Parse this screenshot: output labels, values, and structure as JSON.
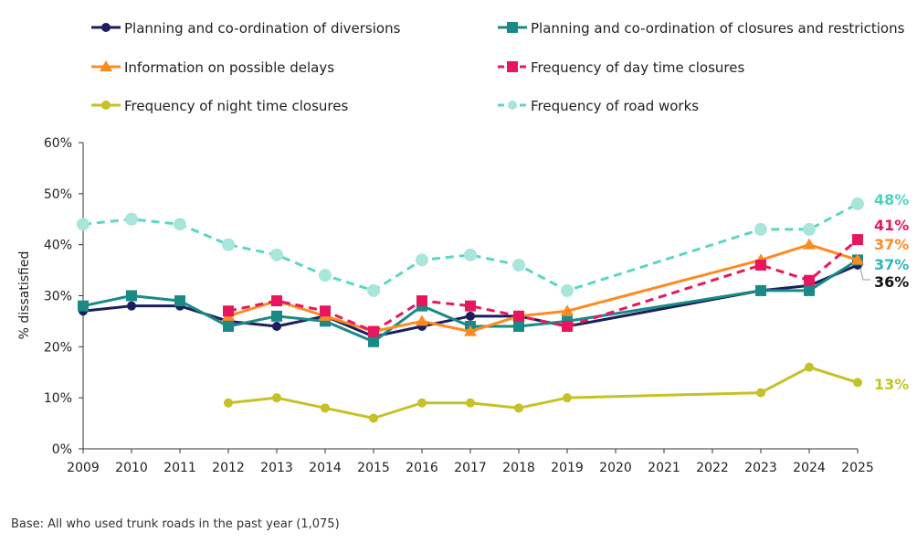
{
  "chart_data": {
    "type": "line",
    "title": "",
    "xlabel": "",
    "ylabel": "% dissatisfied",
    "ylim": [
      0,
      60
    ],
    "yticks": [
      "0%",
      "10%",
      "20%",
      "30%",
      "40%",
      "50%",
      "60%"
    ],
    "xticks": [
      "2009",
      "2010",
      "2011",
      "2012",
      "2013",
      "2014",
      "2015",
      "2016",
      "2017",
      "2018",
      "2019",
      "2020",
      "2021",
      "2022",
      "2023",
      "2024",
      "2025"
    ],
    "grid": false,
    "legend_position": "top",
    "footnote": "Base: All who used trunk roads in the past year (1,075)",
    "series": [
      {
        "name": "Planning and co-ordination of diversions",
        "color": "#1b1f5e",
        "marker": "circle",
        "dash": false,
        "x": [
          2009,
          2010,
          2011,
          2012,
          2013,
          2014,
          2015,
          2016,
          2017,
          2018,
          2019,
          2023,
          2024,
          2025
        ],
        "values": [
          27,
          28,
          28,
          25,
          24,
          26,
          22,
          24,
          26,
          26,
          24,
          31,
          32,
          36
        ],
        "end_label": "36%",
        "label_color": "#111111"
      },
      {
        "name": "Planning and co-ordination of closures and restrictions",
        "color": "#1a8a84",
        "marker": "square",
        "dash": false,
        "x": [
          2009,
          2010,
          2011,
          2012,
          2013,
          2014,
          2015,
          2016,
          2017,
          2018,
          2019,
          2023,
          2024,
          2025
        ],
        "values": [
          28,
          30,
          29,
          24,
          26,
          25,
          21,
          28,
          24,
          24,
          25,
          31,
          31,
          37
        ],
        "end_label": "37%",
        "label_color": "#2bb8b8"
      },
      {
        "name": "Information on possible delays",
        "color": "#ff8a1f",
        "marker": "triangle",
        "dash": false,
        "x": [
          2012,
          2013,
          2014,
          2015,
          2016,
          2017,
          2018,
          2019,
          2023,
          2024,
          2025
        ],
        "values": [
          26,
          29,
          26,
          23,
          25,
          23,
          26,
          27,
          37,
          40,
          37
        ],
        "end_label": "37%",
        "label_color": "#ff8a1f"
      },
      {
        "name": "Frequency of day time closures",
        "color": "#e8175d",
        "marker": "square",
        "dash": true,
        "x": [
          2012,
          2013,
          2014,
          2015,
          2016,
          2017,
          2018,
          2019,
          2023,
          2024,
          2025
        ],
        "values": [
          27,
          29,
          27,
          23,
          29,
          28,
          26,
          24,
          36,
          33,
          41
        ],
        "end_label": "41%",
        "label_color": "#e8175d"
      },
      {
        "name": "Frequency of night time closures",
        "color": "#c5c226",
        "marker": "circle",
        "dash": false,
        "x": [
          2012,
          2013,
          2014,
          2015,
          2016,
          2017,
          2018,
          2019,
          2023,
          2024,
          2025
        ],
        "values": [
          9,
          10,
          8,
          6,
          9,
          9,
          8,
          10,
          11,
          16,
          13
        ],
        "end_label": "13%",
        "label_color": "#c5c226"
      },
      {
        "name": "Frequency of road works",
        "color": "#5cd6c4",
        "marker_color": "#a8e6dc",
        "marker": "circle-large",
        "dash": true,
        "x": [
          2009,
          2010,
          2011,
          2012,
          2013,
          2014,
          2015,
          2016,
          2017,
          2018,
          2019,
          2023,
          2024,
          2025
        ],
        "values": [
          44,
          45,
          44,
          40,
          38,
          34,
          31,
          37,
          38,
          36,
          31,
          43,
          43,
          48
        ],
        "end_label": "48%",
        "label_color": "#4fd1bd"
      }
    ]
  }
}
